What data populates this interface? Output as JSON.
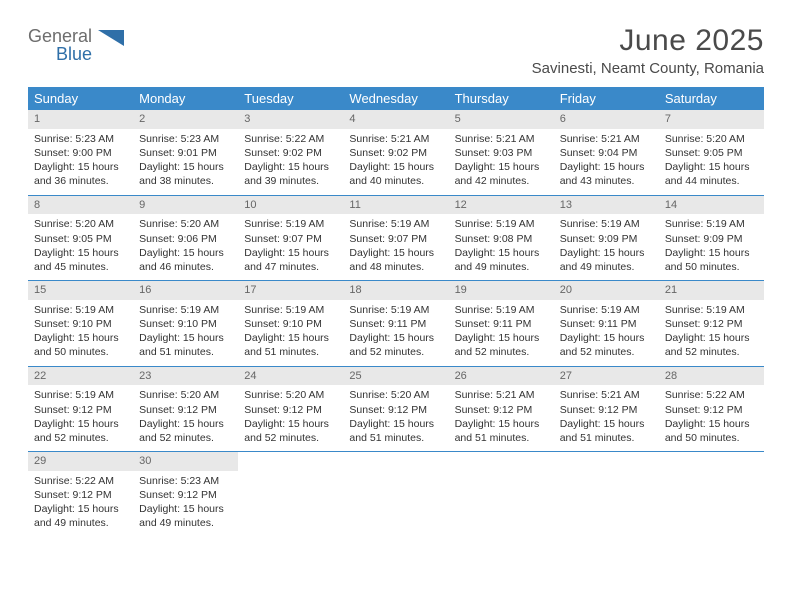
{
  "brand": {
    "name_a": "General",
    "name_b": "Blue"
  },
  "header": {
    "title": "June 2025",
    "location": "Savinesti, Neamt County, Romania"
  },
  "colors": {
    "header_bg": "#3a89c9",
    "header_text": "#ffffff",
    "daynum_bg": "#e8e8e8",
    "daynum_text": "#666666",
    "body_text": "#333333",
    "rule": "#3a89c9",
    "logo_gray": "#6d6d6d",
    "logo_blue": "#2f6fa8"
  },
  "calendar": {
    "columns": [
      "Sunday",
      "Monday",
      "Tuesday",
      "Wednesday",
      "Thursday",
      "Friday",
      "Saturday"
    ],
    "weeks": [
      [
        {
          "n": "1",
          "sr": "5:23 AM",
          "ss": "9:00 PM",
          "dl": "15 hours and 36 minutes."
        },
        {
          "n": "2",
          "sr": "5:23 AM",
          "ss": "9:01 PM",
          "dl": "15 hours and 38 minutes."
        },
        {
          "n": "3",
          "sr": "5:22 AM",
          "ss": "9:02 PM",
          "dl": "15 hours and 39 minutes."
        },
        {
          "n": "4",
          "sr": "5:21 AM",
          "ss": "9:02 PM",
          "dl": "15 hours and 40 minutes."
        },
        {
          "n": "5",
          "sr": "5:21 AM",
          "ss": "9:03 PM",
          "dl": "15 hours and 42 minutes."
        },
        {
          "n": "6",
          "sr": "5:21 AM",
          "ss": "9:04 PM",
          "dl": "15 hours and 43 minutes."
        },
        {
          "n": "7",
          "sr": "5:20 AM",
          "ss": "9:05 PM",
          "dl": "15 hours and 44 minutes."
        }
      ],
      [
        {
          "n": "8",
          "sr": "5:20 AM",
          "ss": "9:05 PM",
          "dl": "15 hours and 45 minutes."
        },
        {
          "n": "9",
          "sr": "5:20 AM",
          "ss": "9:06 PM",
          "dl": "15 hours and 46 minutes."
        },
        {
          "n": "10",
          "sr": "5:19 AM",
          "ss": "9:07 PM",
          "dl": "15 hours and 47 minutes."
        },
        {
          "n": "11",
          "sr": "5:19 AM",
          "ss": "9:07 PM",
          "dl": "15 hours and 48 minutes."
        },
        {
          "n": "12",
          "sr": "5:19 AM",
          "ss": "9:08 PM",
          "dl": "15 hours and 49 minutes."
        },
        {
          "n": "13",
          "sr": "5:19 AM",
          "ss": "9:09 PM",
          "dl": "15 hours and 49 minutes."
        },
        {
          "n": "14",
          "sr": "5:19 AM",
          "ss": "9:09 PM",
          "dl": "15 hours and 50 minutes."
        }
      ],
      [
        {
          "n": "15",
          "sr": "5:19 AM",
          "ss": "9:10 PM",
          "dl": "15 hours and 50 minutes."
        },
        {
          "n": "16",
          "sr": "5:19 AM",
          "ss": "9:10 PM",
          "dl": "15 hours and 51 minutes."
        },
        {
          "n": "17",
          "sr": "5:19 AM",
          "ss": "9:10 PM",
          "dl": "15 hours and 51 minutes."
        },
        {
          "n": "18",
          "sr": "5:19 AM",
          "ss": "9:11 PM",
          "dl": "15 hours and 52 minutes."
        },
        {
          "n": "19",
          "sr": "5:19 AM",
          "ss": "9:11 PM",
          "dl": "15 hours and 52 minutes."
        },
        {
          "n": "20",
          "sr": "5:19 AM",
          "ss": "9:11 PM",
          "dl": "15 hours and 52 minutes."
        },
        {
          "n": "21",
          "sr": "5:19 AM",
          "ss": "9:12 PM",
          "dl": "15 hours and 52 minutes."
        }
      ],
      [
        {
          "n": "22",
          "sr": "5:19 AM",
          "ss": "9:12 PM",
          "dl": "15 hours and 52 minutes."
        },
        {
          "n": "23",
          "sr": "5:20 AM",
          "ss": "9:12 PM",
          "dl": "15 hours and 52 minutes."
        },
        {
          "n": "24",
          "sr": "5:20 AM",
          "ss": "9:12 PM",
          "dl": "15 hours and 52 minutes."
        },
        {
          "n": "25",
          "sr": "5:20 AM",
          "ss": "9:12 PM",
          "dl": "15 hours and 51 minutes."
        },
        {
          "n": "26",
          "sr": "5:21 AM",
          "ss": "9:12 PM",
          "dl": "15 hours and 51 minutes."
        },
        {
          "n": "27",
          "sr": "5:21 AM",
          "ss": "9:12 PM",
          "dl": "15 hours and 51 minutes."
        },
        {
          "n": "28",
          "sr": "5:22 AM",
          "ss": "9:12 PM",
          "dl": "15 hours and 50 minutes."
        }
      ],
      [
        {
          "n": "29",
          "sr": "5:22 AM",
          "ss": "9:12 PM",
          "dl": "15 hours and 49 minutes."
        },
        {
          "n": "30",
          "sr": "5:23 AM",
          "ss": "9:12 PM",
          "dl": "15 hours and 49 minutes."
        },
        null,
        null,
        null,
        null,
        null
      ]
    ],
    "labels": {
      "sunrise": "Sunrise:",
      "sunset": "Sunset:",
      "daylight": "Daylight:"
    }
  }
}
